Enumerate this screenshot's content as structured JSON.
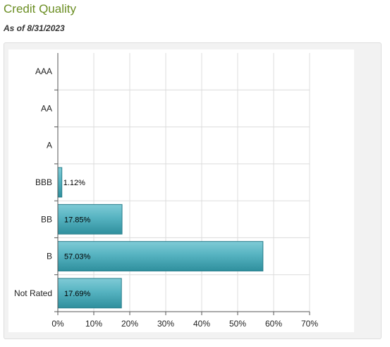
{
  "header": {
    "title": "Credit Quality",
    "as_of": "As of 8/31/2023"
  },
  "chart_data": {
    "type": "bar",
    "orientation": "horizontal",
    "categories": [
      "AAA",
      "AA",
      "A",
      "BBB",
      "BB",
      "B",
      "Not Rated"
    ],
    "values": [
      0,
      0,
      0,
      1.12,
      17.85,
      57.03,
      17.69
    ],
    "data_labels": [
      "",
      "",
      "",
      "1.12%",
      "17.85%",
      "57.03%",
      "17.69%"
    ],
    "xlim": [
      0,
      70
    ],
    "x_ticks": [
      0,
      10,
      20,
      30,
      40,
      50,
      60,
      70
    ],
    "x_tick_labels": [
      "0%",
      "10%",
      "20%",
      "30%",
      "40%",
      "50%",
      "60%",
      "70%"
    ],
    "grid": true,
    "colors": {
      "bar_fill": "#4fb0bf",
      "bar_dark": "#2c8a98",
      "bar_stroke": "#2a7f8c",
      "grid": "#dcdcdc",
      "axis": "#555555"
    }
  }
}
